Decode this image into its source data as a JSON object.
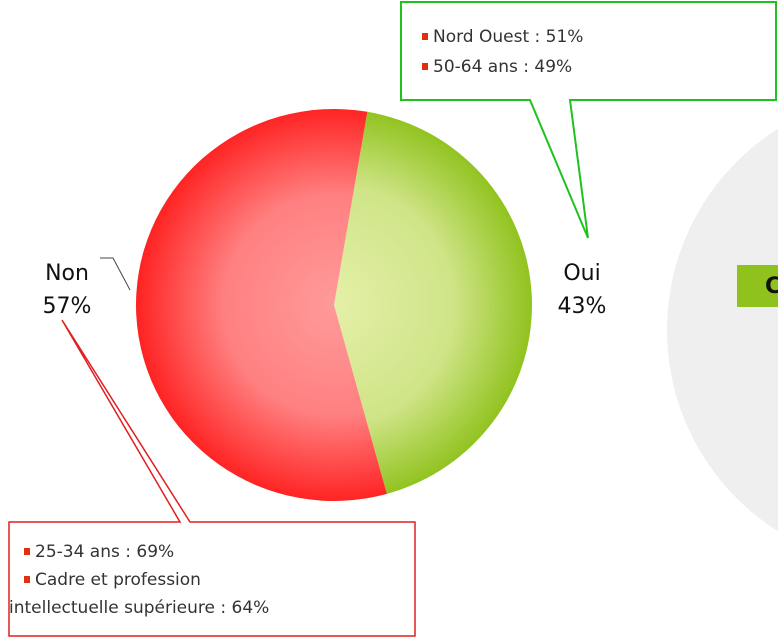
{
  "chart_data": {
    "type": "pie",
    "categories": [
      "Oui",
      "Non"
    ],
    "values": [
      43,
      57
    ],
    "value_labels": [
      "43%",
      "57%"
    ],
    "colors": [
      "#8fc21c",
      "#ff2222"
    ],
    "callouts": [
      {
        "items": [
          [
            "Nord Ouest : 51%"
          ],
          [
            "50-64 ans : 49%"
          ]
        ]
      },
      {
        "items": [
          [
            "25-34 ans : 69%"
          ],
          [
            "Cadre et profession",
            "intellectuelle supérieure : 64%"
          ]
        ]
      }
    ],
    "side_label": "C"
  }
}
